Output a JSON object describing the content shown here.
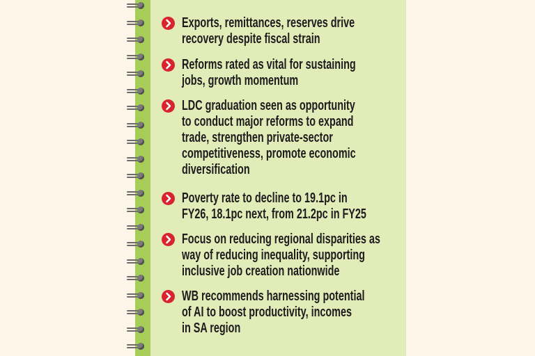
{
  "bullets": [
    {
      "text": "Exports, remittances, reserves drive\nrecovery despite fiscal strain"
    },
    {
      "text": "Reforms rated as vital for sustaining\njobs, growth momentum"
    },
    {
      "text": "LDC graduation seen as opportunity\nto conduct major reforms to expand\ntrade, strengthen private-sector\ncompetitiveness, promote economic\ndiversification"
    },
    {
      "text": "Poverty rate to decline to 19.1pc in\nFY26, 18.1pc next, from 21.2pc in FY25"
    },
    {
      "text": "Focus on reducing regional disparities as\nway of reducing inequality, supporting\ninclusive job creation nationwide"
    },
    {
      "text": "WB recommends harnessing potential\nof AI to boost productivity, incomes\nin SA region"
    }
  ],
  "icon": "chevron-right-circle-icon",
  "colors": {
    "background": "#fdf5e8",
    "panel": "#e2ecb9",
    "binding": "#a6cd57",
    "bullet": "#d8242f"
  }
}
